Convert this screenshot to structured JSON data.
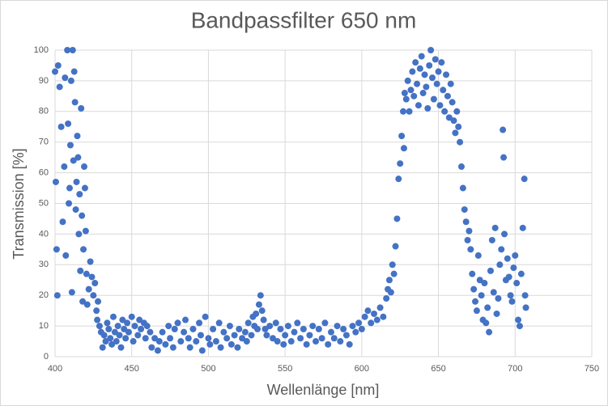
{
  "chart_data": {
    "type": "scatter",
    "title": "Bandpassfilter 650 nm",
    "x_label": "Wellenlänge [nm]",
    "y_label": "Transmission [%]",
    "color": "#4472c4",
    "grid": true,
    "xlim": [
      400,
      750
    ],
    "xticks": [
      400,
      450,
      500,
      550,
      600,
      650,
      700,
      750
    ],
    "ylim": [
      0,
      100
    ],
    "yticks": [
      0,
      10,
      20,
      30,
      40,
      50,
      60,
      70,
      80,
      90,
      100
    ],
    "x": [
      400,
      400.5,
      401,
      401.5,
      402,
      403,
      404,
      405,
      406,
      406.5,
      407,
      408,
      408.5,
      409,
      409.5,
      410,
      410.5,
      411,
      411.5,
      412,
      412.5,
      413,
      413.5,
      414,
      414.5,
      415,
      415.5,
      416,
      416.5,
      417,
      417.5,
      418,
      418.5,
      419,
      419.5,
      420,
      420.5,
      421,
      422,
      423,
      424,
      425,
      426,
      427,
      427.5,
      428,
      429,
      430,
      431,
      432,
      433,
      434,
      435,
      436,
      437,
      438,
      439,
      440,
      441,
      442,
      443,
      444,
      445,
      446,
      447,
      448,
      450,
      451,
      452,
      454,
      455,
      456,
      458,
      459,
      460,
      462,
      463,
      465,
      467,
      468,
      470,
      472,
      474,
      475,
      477,
      478,
      480,
      482,
      484,
      485,
      487,
      488,
      490,
      492,
      494,
      495,
      496,
      498,
      500,
      501,
      503,
      505,
      507,
      508,
      510,
      512,
      514,
      515,
      517,
      519,
      520,
      522,
      524,
      525,
      526,
      528,
      529,
      530,
      531,
      532,
      533,
      534,
      535,
      536,
      537,
      538,
      540,
      542,
      544,
      545,
      547,
      549,
      550,
      552,
      554,
      556,
      558,
      560,
      562,
      564,
      566,
      568,
      570,
      572,
      574,
      576,
      578,
      580,
      582,
      584,
      586,
      588,
      590,
      592,
      594,
      596,
      598,
      600,
      602,
      604,
      606,
      608,
      610,
      612,
      614,
      616,
      617,
      618,
      619,
      620,
      621,
      622,
      623,
      624,
      625,
      626,
      627,
      627.5,
      628,
      629,
      630,
      631,
      632,
      633,
      634,
      635,
      636,
      637,
      638,
      639,
      640,
      641,
      642,
      643,
      644,
      645,
      646,
      647,
      648,
      649,
      650,
      651,
      652,
      653,
      654,
      655,
      656,
      657,
      658,
      659,
      660,
      661,
      662,
      663,
      664,
      665,
      666,
      667,
      668,
      669,
      670,
      671,
      672,
      673,
      674,
      675,
      677,
      678,
      679,
      680,
      682,
      684,
      685,
      686,
      688,
      690,
      691,
      692,
      692.5,
      694,
      695,
      697,
      698,
      700,
      701,
      702,
      703,
      704,
      705,
      706,
      707,
      706.5,
      683,
      687,
      689,
      696,
      699,
      681,
      676,
      693
    ],
    "values": [
      93,
      57,
      35,
      20,
      95,
      88,
      75,
      44,
      62,
      91,
      33,
      100,
      76,
      50,
      55,
      69,
      90,
      21,
      100,
      64,
      93,
      83,
      48,
      57,
      72,
      65,
      40,
      53,
      28,
      81,
      46,
      18,
      35,
      62,
      55,
      41,
      27,
      17,
      22,
      31,
      26,
      20,
      24,
      15,
      12,
      18,
      10,
      8,
      3,
      7,
      5,
      11,
      9,
      6,
      4,
      13,
      8,
      5,
      10,
      7,
      3,
      12,
      9,
      6,
      11,
      8,
      13,
      5,
      10,
      7,
      12,
      9,
      11,
      6,
      10,
      8,
      3,
      6,
      2,
      5,
      8,
      4,
      10,
      6,
      3,
      9,
      11,
      5,
      8,
      12,
      6,
      3,
      9,
      5,
      11,
      7,
      2,
      13,
      6,
      4,
      9,
      5,
      11,
      3,
      8,
      6,
      10,
      4,
      7,
      3,
      9,
      6,
      8,
      5,
      11,
      7,
      13,
      10,
      14,
      9,
      17,
      20,
      15,
      12,
      9,
      7,
      10,
      6,
      11,
      5,
      9,
      4,
      7,
      10,
      5,
      8,
      11,
      6,
      9,
      4,
      7,
      10,
      5,
      9,
      6,
      11,
      4,
      8,
      6,
      10,
      5,
      9,
      7,
      4,
      10,
      8,
      11,
      9,
      13,
      15,
      11,
      14,
      12,
      16,
      13,
      19,
      22,
      25,
      21,
      30,
      27,
      36,
      45,
      58,
      63,
      72,
      80,
      68,
      86,
      84,
      90,
      80,
      87,
      93,
      85,
      96,
      89,
      82,
      94,
      98,
      86,
      92,
      88,
      81,
      95,
      100,
      91,
      84,
      97,
      89,
      93,
      82,
      96,
      87,
      80,
      92,
      85,
      78,
      89,
      83,
      77,
      73,
      80,
      75,
      70,
      62,
      55,
      48,
      44,
      38,
      41,
      35,
      27,
      22,
      18,
      15,
      25,
      20,
      12,
      24,
      16,
      28,
      38,
      21,
      14,
      30,
      35,
      74,
      65,
      25,
      32,
      20,
      18,
      33,
      24,
      12,
      10,
      27,
      42,
      58,
      16,
      20,
      8,
      42,
      19,
      26,
      29,
      11,
      33,
      40
    ]
  }
}
